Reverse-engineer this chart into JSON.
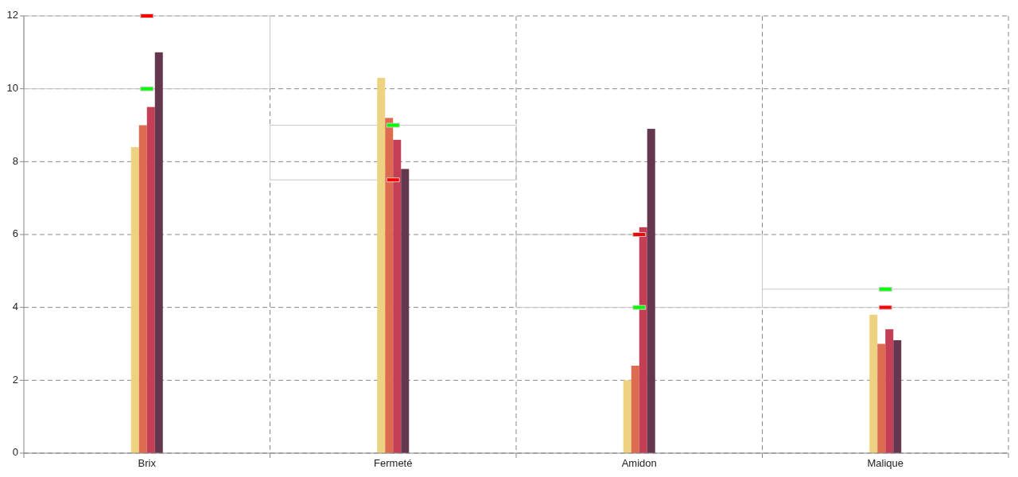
{
  "chart_data": {
    "type": "bar",
    "categories": [
      "Brix",
      "Fermeté",
      "Amidon",
      "Malique"
    ],
    "series": [
      {
        "color": "#ecd281",
        "values": [
          8.4,
          10.3,
          2.0,
          3.8
        ]
      },
      {
        "color": "#dd6b50",
        "values": [
          9.0,
          9.2,
          2.4,
          3.0
        ]
      },
      {
        "color": "#c43f55",
        "values": [
          9.5,
          8.6,
          6.2,
          3.4
        ]
      },
      {
        "color": "#65374e",
        "values": [
          11.0,
          7.8,
          8.9,
          3.1
        ]
      },
      {
        "type": "scatter",
        "color": "#00ff00",
        "x": [
          "Brix",
          "Fermeté",
          "Amidon",
          "Malique"
        ],
        "values": [
          10,
          9,
          4,
          4.5
        ]
      },
      {
        "type": "scatter",
        "color": "#ff0000",
        "x": [
          "Brix",
          "Fermeté",
          "Amidon",
          "Malique"
        ],
        "values": [
          12,
          7.5,
          6,
          4
        ]
      }
    ],
    "ylim": [
      0,
      12
    ],
    "yticks": [
      0,
      2,
      4,
      6,
      8,
      10,
      12
    ],
    "grid": true
  }
}
